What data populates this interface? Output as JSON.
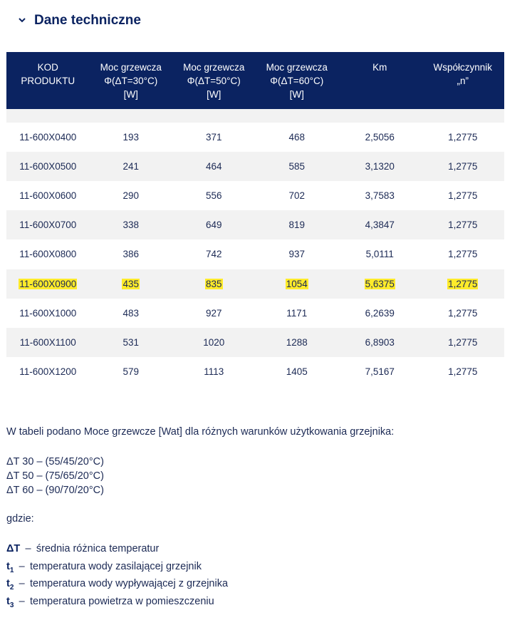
{
  "section": {
    "title": "Dane techniczne"
  },
  "table": {
    "headers": [
      [
        "KOD",
        "PRODUKTU"
      ],
      [
        "Moc grzewcza",
        "Φ(ΔT=30°C)",
        "[W]"
      ],
      [
        "Moc grzewcza",
        "Φ(ΔT=50°C)",
        "[W]"
      ],
      [
        "Moc grzewcza",
        "Φ(ΔT=60°C)",
        "[W]"
      ],
      [
        "Km"
      ],
      [
        "Współczynnik",
        "„n”"
      ]
    ],
    "highlighted_row": 5,
    "rows": [
      [
        "11-600X0400",
        "193",
        "371",
        "468",
        "2,5056",
        "1,2775"
      ],
      [
        "11-600X0500",
        "241",
        "464",
        "585",
        "3,1320",
        "1,2775"
      ],
      [
        "11-600X0600",
        "290",
        "556",
        "702",
        "3,7583",
        "1,2775"
      ],
      [
        "11-600X0700",
        "338",
        "649",
        "819",
        "4,3847",
        "1,2775"
      ],
      [
        "11-600X0800",
        "386",
        "742",
        "937",
        "5,0111",
        "1,2775"
      ],
      [
        "11-600X0900",
        "435",
        "835",
        "1054",
        "5,6375",
        "1,2775"
      ],
      [
        "11-600X1000",
        "483",
        "927",
        "1171",
        "6,2639",
        "1,2775"
      ],
      [
        "11-600X1100",
        "531",
        "1020",
        "1288",
        "6,8903",
        "1,2775"
      ],
      [
        "11-600X1200",
        "579",
        "1113",
        "1405",
        "7,5167",
        "1,2775"
      ]
    ]
  },
  "notes": {
    "intro": "W tabeli podano Moce grzewcze [Wat] dla różnych warunków użytkowania grzejnika:",
    "conditions": [
      "ΔT 30 – (55/45/20°C)",
      "ΔT 50 – (75/65/20°C)",
      "ΔT 60 – (90/70/20°C)"
    ],
    "where": "gdzie:",
    "separator": "–",
    "legend": [
      {
        "symbol": "ΔT",
        "sub": null,
        "text": "średnia różnica temperatur"
      },
      {
        "symbol": "t",
        "sub": "1",
        "text": "temperatura wody zasilającej grzejnik"
      },
      {
        "symbol": "t",
        "sub": "2",
        "text": "temperatura wody wypływającej z grzejnika"
      },
      {
        "symbol": "t",
        "sub": "3",
        "text": "temperatura powietrza w pomieszczeniu"
      }
    ]
  }
}
